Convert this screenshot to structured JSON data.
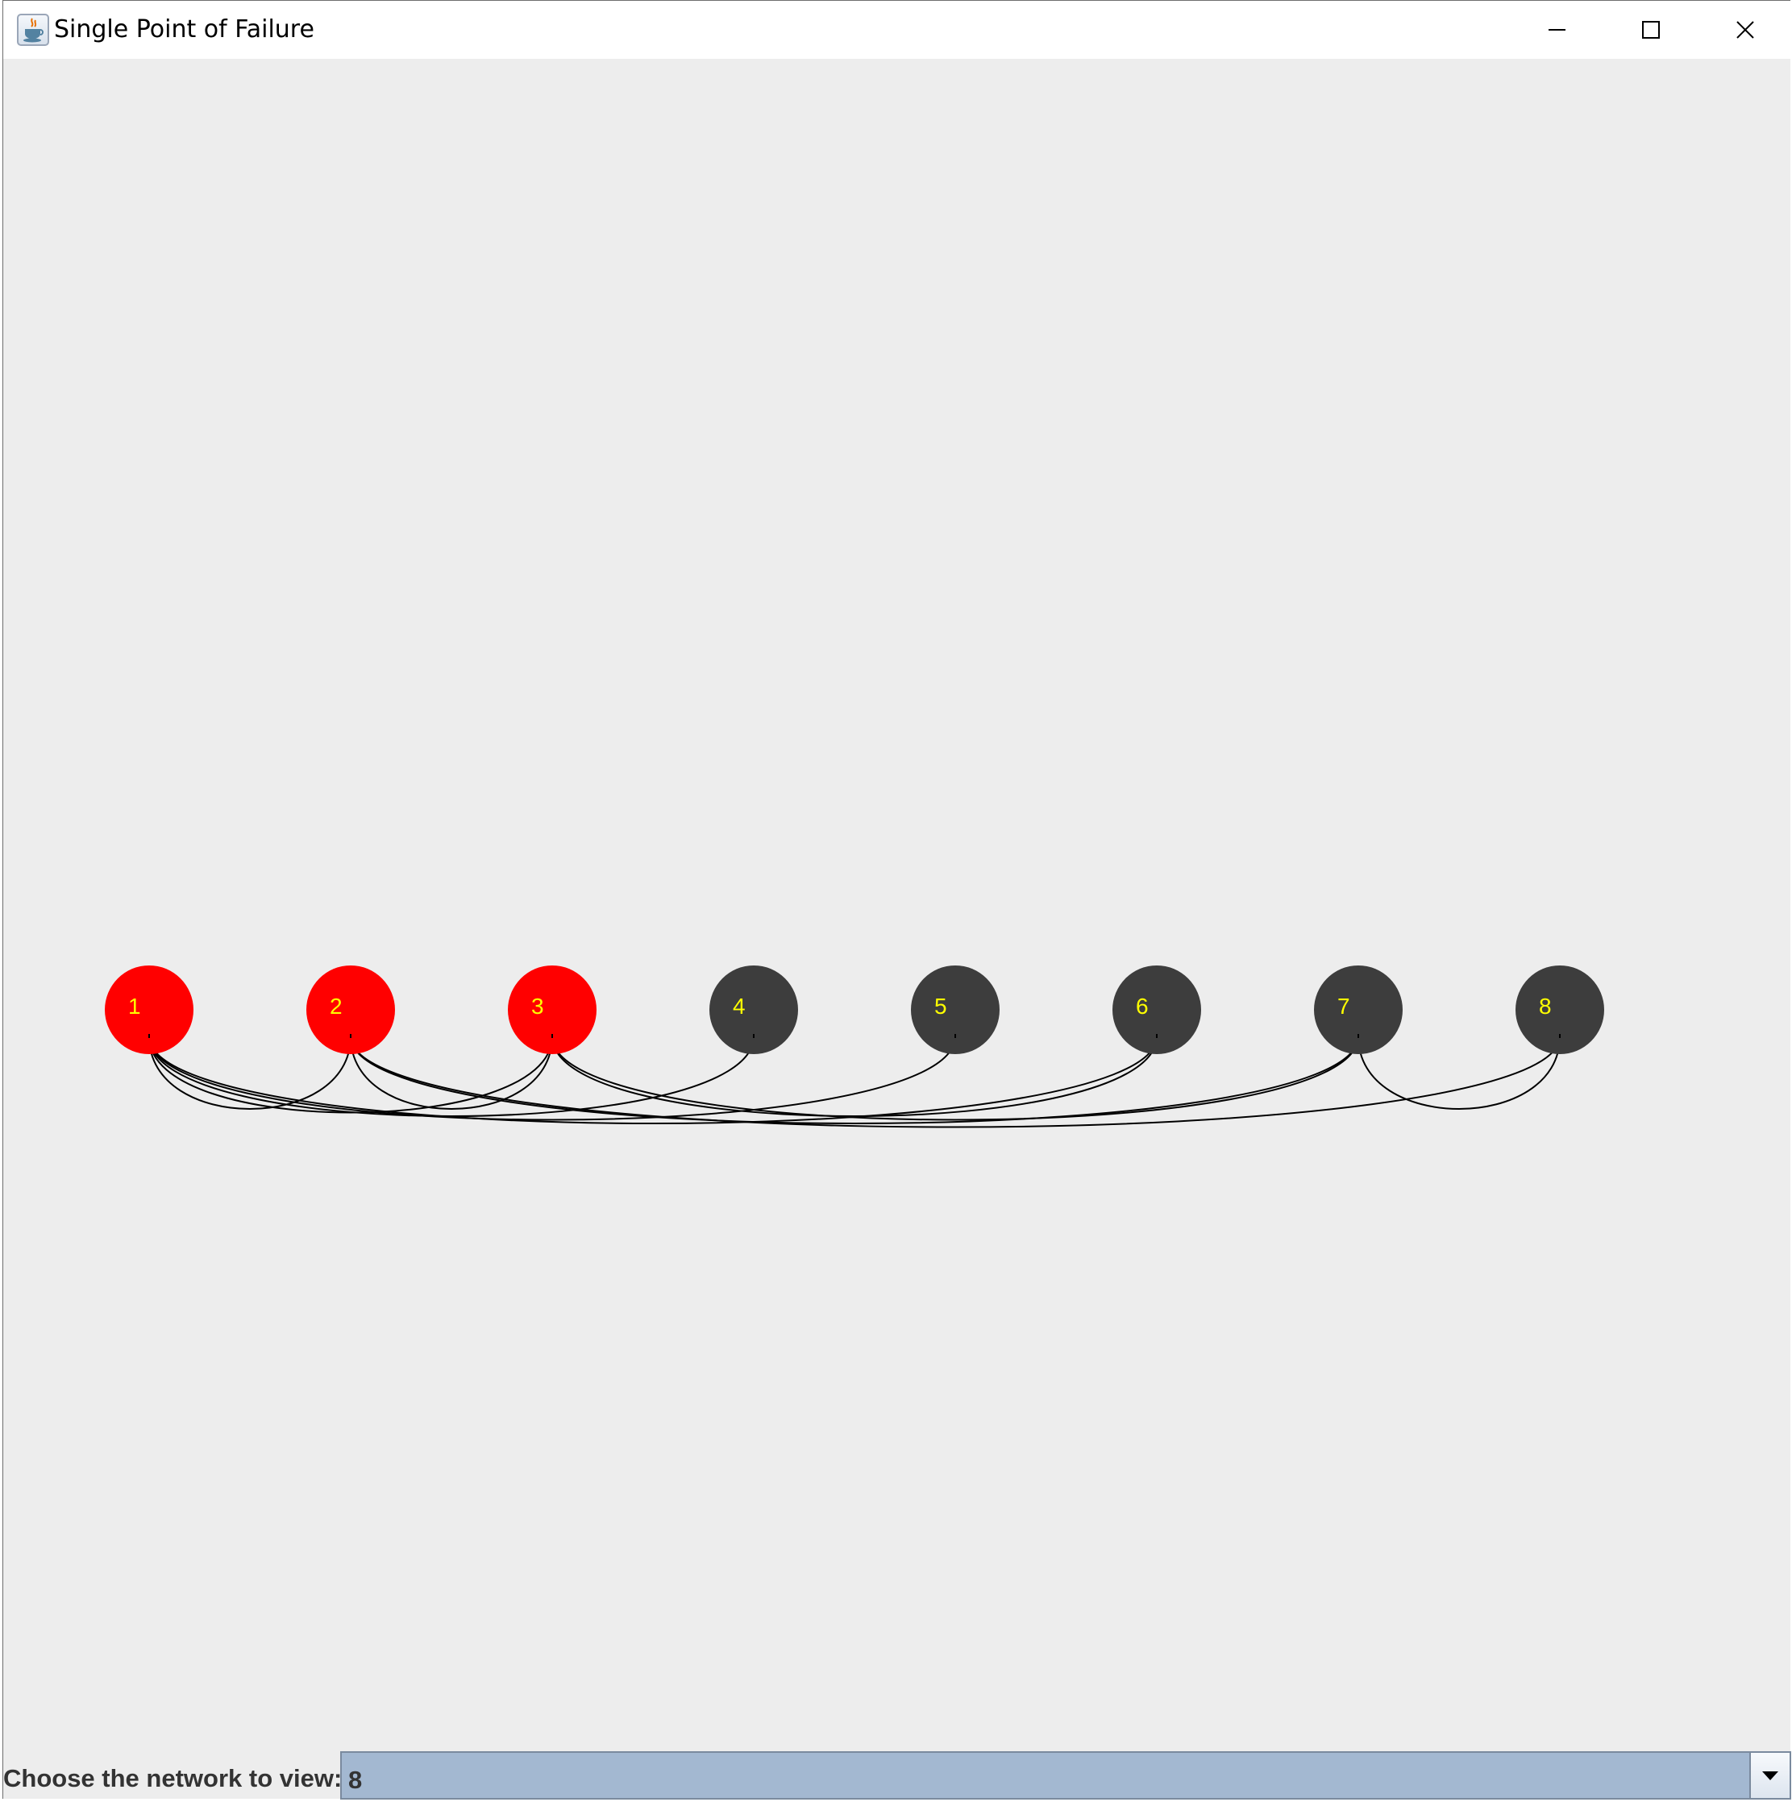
{
  "window": {
    "title": "Single Point of Failure",
    "icon": "java-cup-icon",
    "controls": {
      "minimize": "minimize-icon",
      "maximize": "maximize-icon",
      "close": "close-icon"
    }
  },
  "network": {
    "nodes": [
      {
        "id": "1",
        "critical": true
      },
      {
        "id": "2",
        "critical": true
      },
      {
        "id": "3",
        "critical": true
      },
      {
        "id": "4",
        "critical": false
      },
      {
        "id": "5",
        "critical": false
      },
      {
        "id": "6",
        "critical": false
      },
      {
        "id": "7",
        "critical": false
      },
      {
        "id": "8",
        "critical": false
      }
    ],
    "edges": [
      [
        "1",
        "2"
      ],
      [
        "1",
        "3"
      ],
      [
        "1",
        "4"
      ],
      [
        "1",
        "5"
      ],
      [
        "1",
        "6"
      ],
      [
        "2",
        "3"
      ],
      [
        "2",
        "7"
      ],
      [
        "2",
        "8"
      ],
      [
        "3",
        "6"
      ],
      [
        "3",
        "7"
      ],
      [
        "7",
        "8"
      ]
    ],
    "colors": {
      "critical": "#ff0000",
      "normal": "#3d3d3d",
      "label": "#ffff00",
      "edge": "#000000"
    }
  },
  "controls": {
    "network_label": "Choose the network to view:",
    "network_selected": "8",
    "dropdown_icon": "triangle-down-icon"
  }
}
